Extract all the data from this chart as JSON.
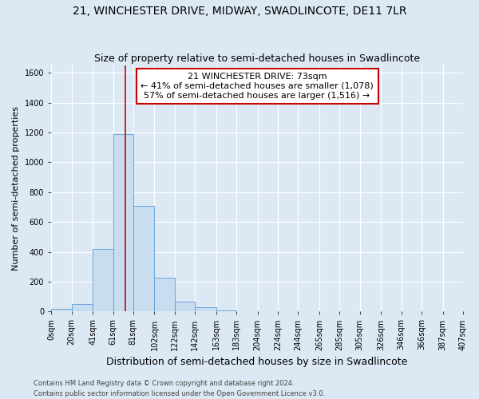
{
  "title": "21, WINCHESTER DRIVE, MIDWAY, SWADLINCOTE, DE11 7LR",
  "subtitle": "Size of property relative to semi-detached houses in Swadlincote",
  "xlabel": "Distribution of semi-detached houses by size in Swadlincote",
  "ylabel": "Number of semi-detached properties",
  "footer_line1": "Contains HM Land Registry data © Crown copyright and database right 2024.",
  "footer_line2": "Contains public sector information licensed under the Open Government Licence v3.0.",
  "annotation_line1": "21 WINCHESTER DRIVE: 73sqm",
  "annotation_line2": "← 41% of semi-detached houses are smaller (1,078)",
  "annotation_line3": "57% of semi-detached houses are larger (1,516) →",
  "property_size": 73,
  "bar_left_edges": [
    0,
    20,
    41,
    61,
    81,
    102,
    122,
    142,
    163,
    183,
    204,
    224,
    244,
    265,
    285,
    305,
    326,
    346,
    366,
    387
  ],
  "bar_widths": [
    20,
    21,
    20,
    20,
    21,
    20,
    20,
    21,
    20,
    21,
    20,
    20,
    21,
    20,
    20,
    21,
    20,
    20,
    21,
    20
  ],
  "bar_heights": [
    20,
    50,
    420,
    1190,
    710,
    225,
    65,
    30,
    5,
    2,
    1,
    0,
    0,
    0,
    0,
    0,
    0,
    0,
    0,
    0
  ],
  "bar_color": "#c8ddf0",
  "bar_edge_color": "#5b9bd5",
  "vline_color": "#cc0000",
  "vline_x": 73,
  "ylim": [
    0,
    1650
  ],
  "yticks": [
    0,
    200,
    400,
    600,
    800,
    1000,
    1200,
    1400,
    1600
  ],
  "xtick_labels": [
    "0sqm",
    "20sqm",
    "41sqm",
    "61sqm",
    "81sqm",
    "102sqm",
    "122sqm",
    "142sqm",
    "163sqm",
    "183sqm",
    "204sqm",
    "224sqm",
    "244sqm",
    "265sqm",
    "285sqm",
    "305sqm",
    "326sqm",
    "346sqm",
    "366sqm",
    "387sqm",
    "407sqm"
  ],
  "background_color": "#dce9f5",
  "plot_bg_color": "#dce9f5",
  "grid_color": "#ffffff",
  "annotation_box_color": "#ffffff",
  "annotation_box_edge": "#cc0000",
  "title_fontsize": 10,
  "subtitle_fontsize": 9,
  "ylabel_fontsize": 8,
  "xlabel_fontsize": 9,
  "tick_fontsize": 7,
  "footer_fontsize": 6,
  "annotation_fontsize": 8
}
